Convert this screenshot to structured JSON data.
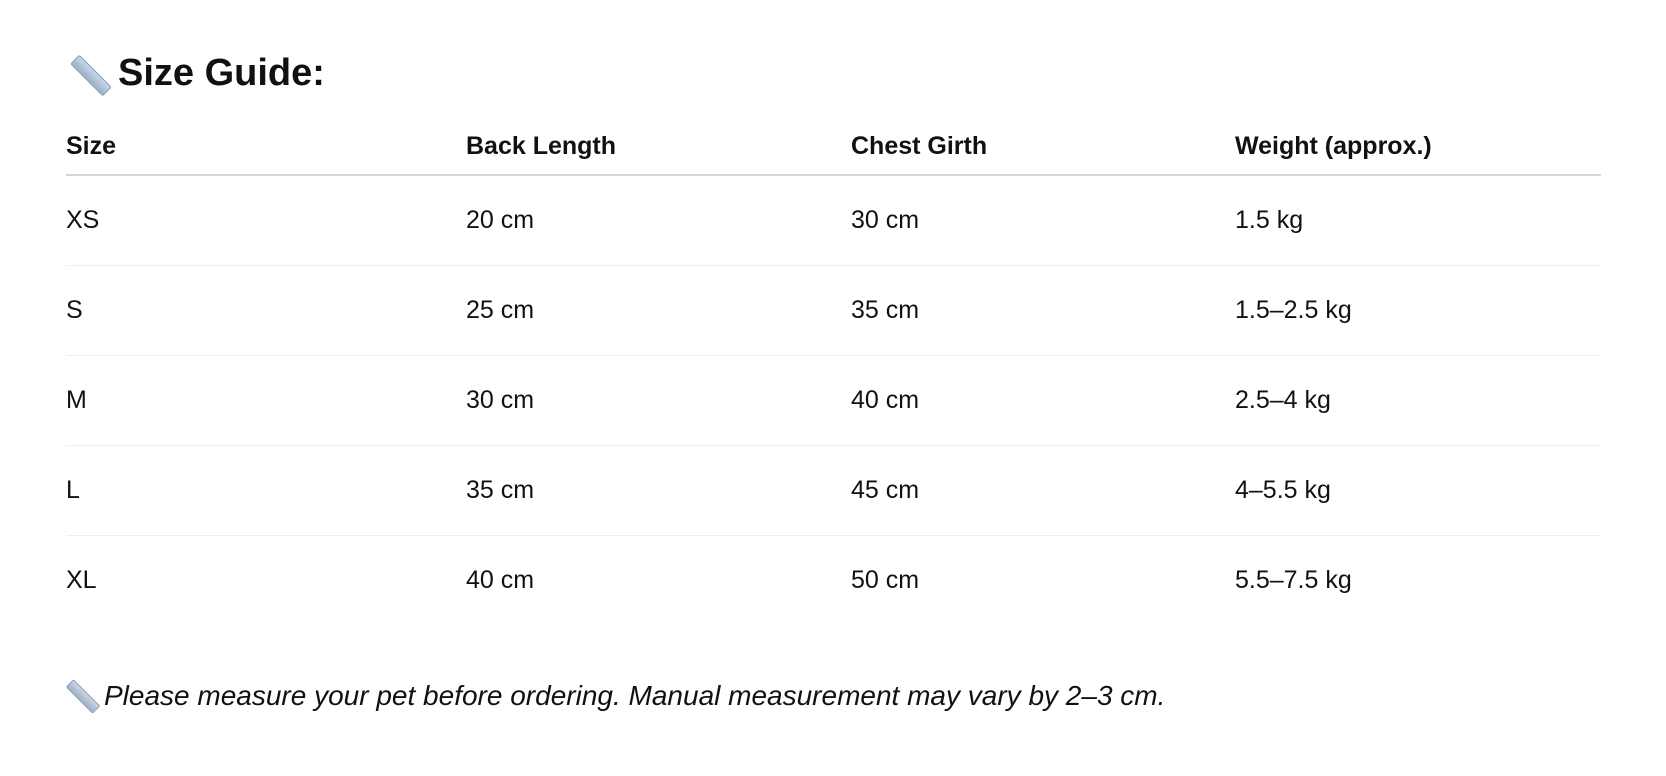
{
  "heading": {
    "icon": "ruler-icon",
    "text": "Size Guide:"
  },
  "table": {
    "headers": [
      "Size",
      "Back Length",
      "Chest Girth",
      "Weight (approx.)"
    ],
    "rows": [
      [
        "XS",
        "20 cm",
        "30 cm",
        "1.5 kg"
      ],
      [
        "S",
        "25 cm",
        "35 cm",
        "1.5–2.5 kg"
      ],
      [
        "M",
        "30 cm",
        "40 cm",
        "2.5–4 kg"
      ],
      [
        "L",
        "35 cm",
        "45 cm",
        "4–5.5 kg"
      ],
      [
        "XL",
        "40 cm",
        "50 cm",
        "5.5–7.5 kg"
      ]
    ]
  },
  "note": {
    "icon": "ruler-icon",
    "text": "Please measure your pet before ordering. Manual measurement may vary by 2–3 cm."
  }
}
